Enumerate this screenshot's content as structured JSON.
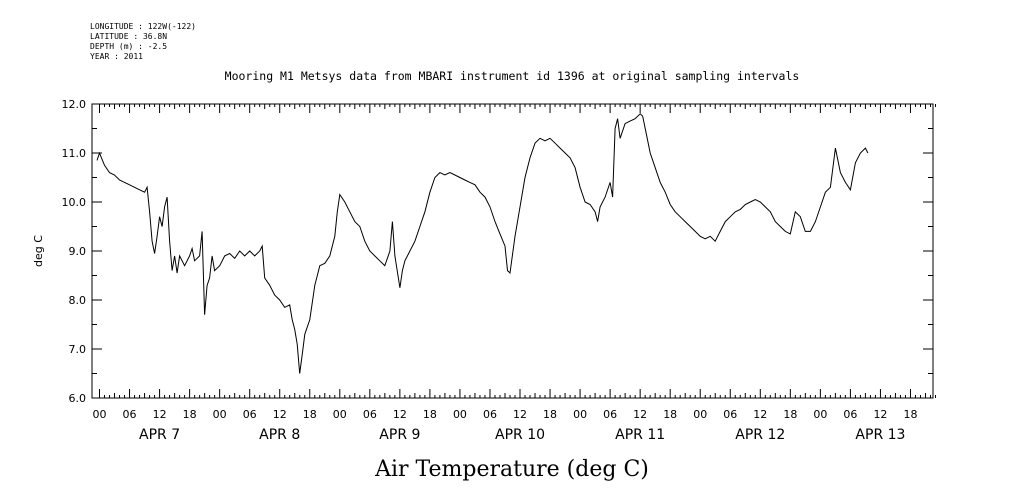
{
  "header": {
    "longitude": "LONGITUDE : 122W(-122)",
    "latitude": "LATITUDE : 36.8N",
    "depth": "DEPTH (m) : -2.5",
    "year": "YEAR : 2011"
  },
  "caption": "Air Temperature (deg C)",
  "chart_data": {
    "type": "line",
    "title": "Mooring M1 Metsys data from MBARI instrument id 1396 at original sampling intervals",
    "xlabel": "",
    "ylabel": "deg C",
    "ylim": [
      6.0,
      12.0
    ],
    "y_ticks": [
      "6.0",
      "7.0",
      "8.0",
      "9.0",
      "10.0",
      "11.0",
      "12.0"
    ],
    "x_hour_labels": [
      "00",
      "06",
      "12",
      "18"
    ],
    "x_day_labels": [
      "APR 7",
      "APR 8",
      "APR 9",
      "APR 10",
      "APR 11",
      "APR 12",
      "APR 13"
    ],
    "x_unit": "hours since 2011-04-07 00:00",
    "xlim": [
      -1.5,
      166.5
    ],
    "series": [
      {
        "name": "",
        "points": [
          [
            -0.5,
            10.85
          ],
          [
            0,
            11.0
          ],
          [
            1,
            10.75
          ],
          [
            2,
            10.6
          ],
          [
            3,
            10.55
          ],
          [
            4,
            10.45
          ],
          [
            5,
            10.4
          ],
          [
            6,
            10.35
          ],
          [
            7,
            10.3
          ],
          [
            8,
            10.25
          ],
          [
            9,
            10.2
          ],
          [
            9.5,
            10.3
          ],
          [
            10,
            9.8
          ],
          [
            10.5,
            9.2
          ],
          [
            11,
            8.95
          ],
          [
            11.5,
            9.3
          ],
          [
            12,
            9.7
          ],
          [
            12.5,
            9.5
          ],
          [
            13,
            9.9
          ],
          [
            13.5,
            10.1
          ],
          [
            14,
            9.2
          ],
          [
            14.5,
            8.6
          ],
          [
            15,
            8.9
          ],
          [
            15.5,
            8.55
          ],
          [
            16,
            8.9
          ],
          [
            17,
            8.7
          ],
          [
            18,
            8.9
          ],
          [
            18.5,
            9.05
          ],
          [
            19,
            8.8
          ],
          [
            20,
            8.9
          ],
          [
            20.5,
            9.4
          ],
          [
            21,
            7.7
          ],
          [
            21.5,
            8.3
          ],
          [
            22,
            8.45
          ],
          [
            22.5,
            8.9
          ],
          [
            23,
            8.6
          ],
          [
            24,
            8.7
          ],
          [
            25,
            8.9
          ],
          [
            26,
            8.95
          ],
          [
            27,
            8.85
          ],
          [
            28,
            9.0
          ],
          [
            29,
            8.9
          ],
          [
            30,
            9.0
          ],
          [
            31,
            8.9
          ],
          [
            32,
            9.0
          ],
          [
            32.5,
            9.1
          ],
          [
            33,
            8.45
          ],
          [
            34,
            8.3
          ],
          [
            35,
            8.1
          ],
          [
            36,
            8.0
          ],
          [
            37,
            7.85
          ],
          [
            38,
            7.9
          ],
          [
            38.5,
            7.6
          ],
          [
            39,
            7.4
          ],
          [
            39.5,
            7.1
          ],
          [
            40,
            6.5
          ],
          [
            40.5,
            6.9
          ],
          [
            41,
            7.3
          ],
          [
            42,
            7.6
          ],
          [
            43,
            8.3
          ],
          [
            44,
            8.7
          ],
          [
            45,
            8.75
          ],
          [
            46,
            8.9
          ],
          [
            47,
            9.3
          ],
          [
            47.5,
            9.8
          ],
          [
            48,
            10.15
          ],
          [
            49,
            10.0
          ],
          [
            50,
            9.8
          ],
          [
            51,
            9.6
          ],
          [
            52,
            9.5
          ],
          [
            53,
            9.2
          ],
          [
            54,
            9.0
          ],
          [
            55,
            8.9
          ],
          [
            56,
            8.8
          ],
          [
            57,
            8.7
          ],
          [
            58,
            9.0
          ],
          [
            58.5,
            9.6
          ],
          [
            59,
            8.9
          ],
          [
            60,
            8.25
          ],
          [
            60.5,
            8.6
          ],
          [
            61,
            8.8
          ],
          [
            62,
            9.0
          ],
          [
            63,
            9.2
          ],
          [
            64,
            9.5
          ],
          [
            65,
            9.8
          ],
          [
            66,
            10.2
          ],
          [
            67,
            10.5
          ],
          [
            68,
            10.6
          ],
          [
            69,
            10.55
          ],
          [
            70,
            10.6
          ],
          [
            71,
            10.55
          ],
          [
            72,
            10.5
          ],
          [
            73,
            10.45
          ],
          [
            74,
            10.4
          ],
          [
            75,
            10.35
          ],
          [
            76,
            10.2
          ],
          [
            77,
            10.1
          ],
          [
            78,
            9.9
          ],
          [
            79,
            9.6
          ],
          [
            80,
            9.35
          ],
          [
            81,
            9.1
          ],
          [
            81.5,
            8.6
          ],
          [
            82,
            8.55
          ],
          [
            83,
            9.3
          ],
          [
            84,
            9.9
          ],
          [
            85,
            10.5
          ],
          [
            86,
            10.9
          ],
          [
            87,
            11.2
          ],
          [
            88,
            11.3
          ],
          [
            89,
            11.25
          ],
          [
            90,
            11.3
          ],
          [
            91,
            11.2
          ],
          [
            92,
            11.1
          ],
          [
            93,
            11.0
          ],
          [
            94,
            10.9
          ],
          [
            95,
            10.7
          ],
          [
            96,
            10.3
          ],
          [
            97,
            10.0
          ],
          [
            98,
            9.95
          ],
          [
            99,
            9.8
          ],
          [
            99.5,
            9.6
          ],
          [
            100,
            9.9
          ],
          [
            101,
            10.1
          ],
          [
            102,
            10.4
          ],
          [
            102.5,
            10.1
          ],
          [
            103,
            11.5
          ],
          [
            103.5,
            11.7
          ],
          [
            104,
            11.3
          ],
          [
            105,
            11.6
          ],
          [
            106,
            11.65
          ],
          [
            107,
            11.7
          ],
          [
            108,
            11.8
          ],
          [
            108.5,
            11.75
          ],
          [
            109,
            11.5
          ],
          [
            110,
            11.0
          ],
          [
            111,
            10.7
          ],
          [
            112,
            10.4
          ],
          [
            113,
            10.2
          ],
          [
            114,
            9.95
          ],
          [
            115,
            9.8
          ],
          [
            116,
            9.7
          ],
          [
            117,
            9.6
          ],
          [
            118,
            9.5
          ],
          [
            119,
            9.4
          ],
          [
            120,
            9.3
          ],
          [
            121,
            9.25
          ],
          [
            122,
            9.3
          ],
          [
            123,
            9.2
          ],
          [
            124,
            9.4
          ],
          [
            125,
            9.6
          ],
          [
            126,
            9.7
          ],
          [
            127,
            9.8
          ],
          [
            128,
            9.85
          ],
          [
            129,
            9.95
          ],
          [
            130,
            10.0
          ],
          [
            131,
            10.05
          ],
          [
            132,
            10.0
          ],
          [
            133,
            9.9
          ],
          [
            134,
            9.8
          ],
          [
            135,
            9.6
          ],
          [
            136,
            9.5
          ],
          [
            137,
            9.4
          ],
          [
            138,
            9.35
          ],
          [
            139,
            9.8
          ],
          [
            140,
            9.7
          ],
          [
            141,
            9.4
          ],
          [
            142,
            9.4
          ],
          [
            143,
            9.6
          ],
          [
            144,
            9.9
          ],
          [
            145,
            10.2
          ],
          [
            146,
            10.3
          ],
          [
            147,
            11.1
          ],
          [
            148,
            10.6
          ],
          [
            149,
            10.4
          ],
          [
            150,
            10.25
          ],
          [
            151,
            10.8
          ],
          [
            152,
            11.0
          ],
          [
            153,
            11.1
          ],
          [
            153.5,
            11.0
          ]
        ]
      }
    ]
  }
}
